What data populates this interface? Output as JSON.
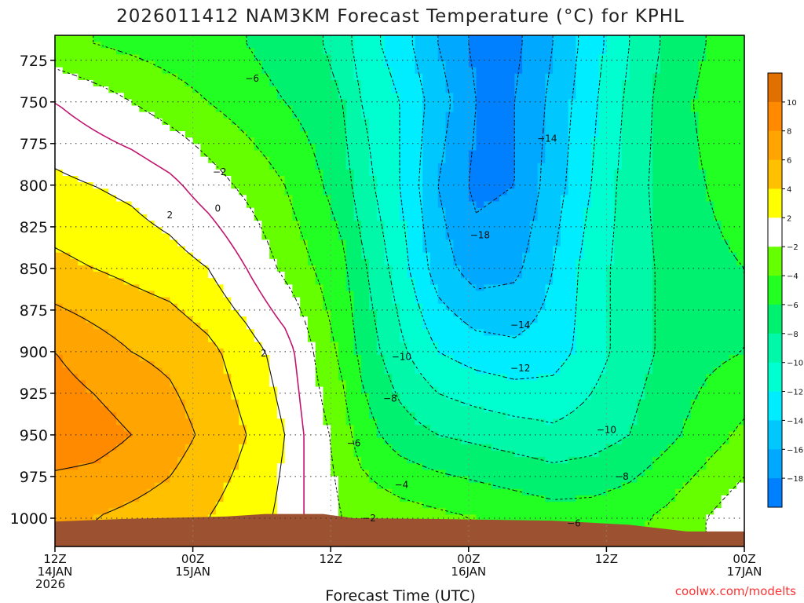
{
  "chart_data": {
    "type": "heatmap",
    "title": "2026011412 NAM3KM Forecast Temperature (°C) for KPHL",
    "xlabel": "Forecast Time (UTC)",
    "ylabel": "",
    "credit": "coolwx.com/modelts",
    "x_range_hours": [
      0,
      36
    ],
    "y_range_hPa": [
      1017,
      710
    ],
    "y_ticks": [
      {
        "value": 725,
        "label": "725"
      },
      {
        "value": 750,
        "label": "750"
      },
      {
        "value": 775,
        "label": "775"
      },
      {
        "value": 800,
        "label": "800"
      },
      {
        "value": 825,
        "label": "825"
      },
      {
        "value": 850,
        "label": "850"
      },
      {
        "value": 875,
        "label": "875"
      },
      {
        "value": 900,
        "label": "900"
      },
      {
        "value": 925,
        "label": "925"
      },
      {
        "value": 950,
        "label": "950"
      },
      {
        "value": 975,
        "label": "975"
      },
      {
        "value": 1000,
        "label": "1000"
      }
    ],
    "x_ticks": [
      {
        "hour": 0,
        "lines": [
          "12Z",
          "14JAN",
          "2026"
        ]
      },
      {
        "hour": 7.2,
        "lines": [
          "00Z",
          "15JAN"
        ]
      },
      {
        "hour": 14.4,
        "lines": [
          "12Z"
        ]
      },
      {
        "hour": 21.6,
        "lines": [
          "00Z",
          "16JAN"
        ]
      },
      {
        "hour": 28.8,
        "lines": [
          "12Z"
        ]
      },
      {
        "hour": 36,
        "lines": [
          "00Z",
          "17JAN"
        ]
      }
    ],
    "grid": true,
    "colorbar": {
      "placement": "right",
      "bands": [
        {
          "lo": 10,
          "hi": 12,
          "color": "#e07000",
          "label": "10"
        },
        {
          "lo": 8,
          "hi": 10,
          "color": "#ff8a00",
          "label": "8"
        },
        {
          "lo": 6,
          "hi": 8,
          "color": "#ffa400",
          "label": "6"
        },
        {
          "lo": 4,
          "hi": 6,
          "color": "#ffc000",
          "label": "4"
        },
        {
          "lo": 2,
          "hi": 4,
          "color": "#ffff00",
          "label": "2"
        },
        {
          "lo": -2,
          "hi": 2,
          "color": "#ffffff",
          "label": "−2"
        },
        {
          "lo": -4,
          "hi": -2,
          "color": "#66ff00",
          "label": "−4"
        },
        {
          "lo": -6,
          "hi": -4,
          "color": "#22ff22",
          "label": "−6"
        },
        {
          "lo": -8,
          "hi": -6,
          "color": "#00f070",
          "label": "−8"
        },
        {
          "lo": -10,
          "hi": -8,
          "color": "#00f8a8",
          "label": "−10"
        },
        {
          "lo": -12,
          "hi": -10,
          "color": "#00ffd0",
          "label": "−12"
        },
        {
          "lo": -14,
          "hi": -12,
          "color": "#00ecff",
          "label": "−14"
        },
        {
          "lo": -16,
          "hi": -14,
          "color": "#00c8ff",
          "label": "−16"
        },
        {
          "lo": -18,
          "hi": -16,
          "color": "#00a8ff",
          "label": "−18"
        },
        {
          "lo": -20,
          "hi": -18,
          "color": "#0080ff",
          "label": ""
        }
      ]
    },
    "contour_labels": [
      {
        "text": "−6",
        "hour": 10.3,
        "hPa": 736
      },
      {
        "text": "−2",
        "hour": 8.6,
        "hPa": 792
      },
      {
        "text": "0",
        "hour": 8.5,
        "hPa": 814
      },
      {
        "text": "2",
        "hour": 6.0,
        "hPa": 818
      },
      {
        "text": "2",
        "hour": 10.9,
        "hPa": 901
      },
      {
        "text": "−14",
        "hour": 25.7,
        "hPa": 772
      },
      {
        "text": "−18",
        "hour": 22.2,
        "hPa": 830
      },
      {
        "text": "−14",
        "hour": 24.3,
        "hPa": 884
      },
      {
        "text": "−10",
        "hour": 18.1,
        "hPa": 903
      },
      {
        "text": "−12",
        "hour": 24.3,
        "hPa": 910
      },
      {
        "text": "−8",
        "hour": 17.5,
        "hPa": 928
      },
      {
        "text": "−6",
        "hour": 15.6,
        "hPa": 955
      },
      {
        "text": "−10",
        "hour": 28.8,
        "hPa": 947
      },
      {
        "text": "−4",
        "hour": 18.1,
        "hPa": 980
      },
      {
        "text": "−8",
        "hour": 29.6,
        "hPa": 975
      },
      {
        "text": "−2",
        "hour": 16.4,
        "hPa": 1000
      },
      {
        "text": "−6",
        "hour": 27.1,
        "hPa": 1003
      }
    ],
    "surface_pressure_hPa": [
      [
        0,
        1002
      ],
      [
        3.5,
        1000.5
      ],
      [
        7.2,
        999.5
      ],
      [
        9,
        999
      ],
      [
        11,
        997.5
      ],
      [
        14,
        997.5
      ],
      [
        15.6,
        1000
      ],
      [
        20,
        1000.5
      ],
      [
        26,
        1001.5
      ],
      [
        30,
        1004
      ],
      [
        33,
        1008
      ],
      [
        36,
        1008
      ]
    ],
    "temperature_c": {
      "hours": [
        0,
        2,
        4,
        6,
        8,
        10,
        12,
        13,
        14,
        15,
        16,
        18,
        20,
        22,
        24,
        26,
        28,
        30,
        32,
        34,
        36
      ],
      "pressures": [
        715,
        750,
        800,
        850,
        900,
        950,
        1000
      ],
      "values": [
        [
          -3.5,
          -4.0,
          -4.5,
          -5.0,
          -5.5,
          -6.0,
          -7.0,
          -7.5,
          -8.0,
          -9.0,
          -11.0,
          -13.0,
          -16.0,
          -18.5,
          -18.5,
          -16.0,
          -13.0,
          -10.0,
          -7.5,
          -6.0,
          -5.0
        ],
        [
          0.0,
          -1.0,
          -2.0,
          -3.0,
          -4.0,
          -5.0,
          -6.0,
          -6.5,
          -7.0,
          -8.0,
          -10.0,
          -12.0,
          -15.0,
          -18.0,
          -18.0,
          -15.5,
          -12.5,
          -9.5,
          -7.0,
          -5.5,
          -5.0
        ],
        [
          2.5,
          2.0,
          1.5,
          0.5,
          -1.0,
          -2.5,
          -4.0,
          -5.0,
          -6.0,
          -7.0,
          -9.0,
          -12.0,
          -16.0,
          -18.5,
          -18.0,
          -15.0,
          -12.0,
          -9.0,
          -7.0,
          -6.0,
          -5.0
        ],
        [
          4.5,
          4.0,
          3.5,
          3.0,
          2.0,
          0.0,
          -2.5,
          -3.5,
          -4.5,
          -5.5,
          -7.5,
          -11.0,
          -15.0,
          -17.0,
          -16.5,
          -14.0,
          -11.0,
          -9.0,
          -7.5,
          -6.5,
          -6.0
        ],
        [
          8.0,
          7.0,
          6.0,
          5.5,
          4.5,
          3.0,
          1.0,
          -1.0,
          -3.0,
          -4.5,
          -6.5,
          -9.5,
          -12.0,
          -13.0,
          -13.5,
          -13.0,
          -11.0,
          -9.0,
          -7.5,
          -6.5,
          -6.0
        ],
        [
          9.5,
          9.0,
          8.0,
          7.0,
          5.5,
          4.0,
          2.0,
          0.0,
          -1.5,
          -3.0,
          -5.0,
          -7.0,
          -8.0,
          -8.5,
          -9.0,
          -9.5,
          -9.0,
          -8.0,
          -6.5,
          -5.0,
          -3.5
        ],
        [
          6.0,
          6.0,
          5.5,
          5.0,
          4.0,
          3.0,
          1.5,
          0.0,
          -1.0,
          -2.0,
          -2.5,
          -3.0,
          -3.5,
          -4.0,
          -4.5,
          -5.0,
          -5.0,
          -4.5,
          -3.5,
          -2.0,
          -0.5
        ]
      ]
    }
  }
}
